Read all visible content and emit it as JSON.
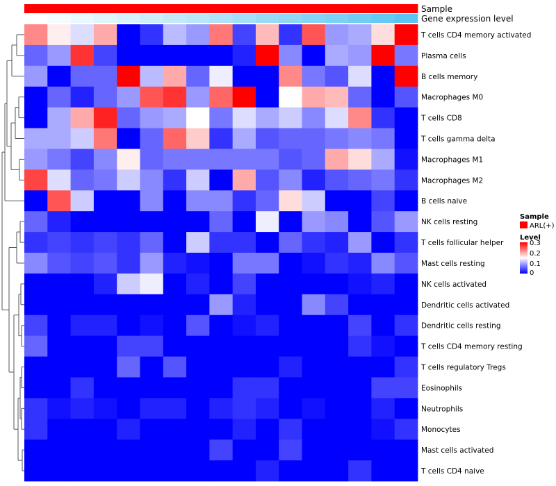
{
  "chart_data": {
    "type": "heatmap",
    "annotation_tracks": [
      "Sample",
      "Gene expression level"
    ],
    "rows": [
      "T cells CD4 memory activated",
      "Plasma cells",
      "B cells memory",
      "Macrophages M0",
      "T cells CD8",
      "T cells gamma delta",
      "Macrophages M1",
      "Macrophages M2",
      "B cells naive",
      "NK cells resting",
      "T cells follicular helper",
      "Mast cells resting",
      "NK cells activated",
      "Dendritic cells activated",
      "Dendritic cells resting",
      "T cells CD4 memory resting",
      "T cells regulatory  Tregs",
      "Eosinophils",
      "Neutrophils",
      "Monocytes",
      "Mast cells activated",
      "T cells CD4 naive"
    ],
    "values": [
      [
        0.22,
        0.16,
        0.13,
        0.2,
        0.0,
        0.03,
        0.11,
        0.09,
        0.23,
        0.04,
        0.19,
        0.03,
        0.25,
        0.09,
        0.1,
        0.17,
        0.3
      ],
      [
        0.06,
        0.09,
        0.27,
        0.04,
        0.0,
        0.0,
        0.0,
        0.0,
        0.0,
        0.02,
        0.3,
        0.08,
        0.0,
        0.1,
        0.09,
        0.3,
        0.07
      ],
      [
        0.09,
        0.0,
        0.06,
        0.06,
        0.3,
        0.11,
        0.2,
        0.06,
        0.14,
        0.0,
        0.0,
        0.22,
        0.07,
        0.05,
        0.13,
        0.0,
        0.3
      ],
      [
        0.0,
        0.06,
        0.02,
        0.06,
        0.09,
        0.25,
        0.27,
        0.09,
        0.24,
        0.3,
        0.0,
        0.15,
        0.2,
        0.19,
        0.06,
        0.0,
        0.05
      ],
      [
        0.0,
        0.1,
        0.2,
        0.28,
        0.06,
        0.09,
        0.1,
        0.15,
        0.07,
        0.13,
        0.1,
        0.12,
        0.08,
        0.13,
        0.22,
        0.03,
        0.0
      ],
      [
        0.1,
        0.1,
        0.12,
        0.23,
        0.0,
        0.06,
        0.24,
        0.18,
        0.03,
        0.1,
        0.05,
        0.06,
        0.06,
        0.07,
        0.08,
        0.07,
        0.0
      ],
      [
        0.09,
        0.07,
        0.04,
        0.08,
        0.16,
        0.06,
        0.07,
        0.07,
        0.07,
        0.07,
        0.07,
        0.05,
        0.06,
        0.2,
        0.17,
        0.1,
        0.01
      ],
      [
        0.26,
        0.13,
        0.06,
        0.07,
        0.12,
        0.08,
        0.03,
        0.12,
        0.0,
        0.2,
        0.05,
        0.08,
        0.02,
        0.05,
        0.06,
        0.07,
        0.03
      ],
      [
        0.0,
        0.25,
        0.12,
        0.0,
        0.0,
        0.08,
        0.0,
        0.08,
        0.08,
        0.03,
        0.06,
        0.17,
        0.12,
        0.0,
        0.0,
        0.04,
        0.0
      ],
      [
        0.06,
        0.02,
        0.0,
        0.0,
        0.0,
        0.0,
        0.0,
        0.0,
        0.06,
        0.0,
        0.14,
        0.0,
        0.09,
        0.08,
        0.0,
        0.05,
        0.09
      ],
      [
        0.03,
        0.04,
        0.03,
        0.04,
        0.03,
        0.06,
        0.0,
        0.12,
        0.03,
        0.03,
        0.0,
        0.06,
        0.03,
        0.02,
        0.09,
        0.0,
        0.03
      ],
      [
        0.08,
        0.05,
        0.04,
        0.05,
        0.03,
        0.09,
        0.02,
        0.01,
        0.0,
        0.07,
        0.07,
        0.0,
        0.01,
        0.03,
        0.02,
        0.08,
        0.05
      ],
      [
        0.0,
        0.0,
        0.0,
        0.02,
        0.12,
        0.14,
        0.0,
        0.02,
        0.0,
        0.04,
        0.0,
        0.0,
        0.0,
        0.0,
        0.01,
        0.02,
        0.0
      ],
      [
        0.0,
        0.0,
        0.0,
        0.0,
        0.0,
        0.0,
        0.0,
        0.0,
        0.09,
        0.02,
        0.0,
        0.0,
        0.08,
        0.04,
        0.0,
        0.0,
        0.0
      ],
      [
        0.04,
        0.0,
        0.02,
        0.02,
        0.0,
        0.01,
        0.0,
        0.05,
        0.0,
        0.01,
        0.02,
        0.0,
        0.0,
        0.0,
        0.04,
        0.0,
        0.03
      ],
      [
        0.06,
        0.0,
        0.0,
        0.0,
        0.04,
        0.04,
        0.0,
        0.0,
        0.0,
        0.0,
        0.0,
        0.0,
        0.0,
        0.0,
        0.03,
        0.01,
        0.0
      ],
      [
        0.0,
        0.0,
        0.0,
        0.0,
        0.06,
        0.0,
        0.05,
        0.0,
        0.0,
        0.0,
        0.0,
        0.02,
        0.0,
        0.0,
        0.0,
        0.0,
        0.03
      ],
      [
        0.0,
        0.0,
        0.03,
        0.0,
        0.0,
        0.0,
        0.0,
        0.0,
        0.0,
        0.03,
        0.03,
        0.0,
        0.0,
        0.0,
        0.0,
        0.04,
        0.04
      ],
      [
        0.03,
        0.01,
        0.02,
        0.01,
        0.0,
        0.02,
        0.02,
        0.0,
        0.02,
        0.03,
        0.02,
        0.0,
        0.01,
        0.0,
        0.0,
        0.02,
        0.0
      ],
      [
        0.03,
        0.0,
        0.0,
        0.0,
        0.02,
        0.0,
        0.0,
        0.0,
        0.0,
        0.02,
        0.0,
        0.03,
        0.0,
        0.0,
        0.0,
        0.01,
        0.03
      ],
      [
        0.0,
        0.0,
        0.0,
        0.0,
        0.0,
        0.0,
        0.0,
        0.0,
        0.04,
        0.0,
        0.0,
        0.04,
        0.0,
        0.0,
        0.0,
        0.0,
        0.0
      ],
      [
        0.0,
        0.0,
        0.0,
        0.0,
        0.0,
        0.0,
        0.0,
        0.0,
        0.0,
        0.0,
        0.02,
        0.0,
        0.0,
        0.0,
        0.03,
        0.0,
        0.0
      ]
    ],
    "sample_annotation": [
      "ARL(+)",
      "ARL(+)",
      "ARL(+)",
      "ARL(+)",
      "ARL(+)",
      "ARL(+)",
      "ARL(+)",
      "ARL(+)",
      "ARL(+)",
      "ARL(+)",
      "ARL(+)",
      "ARL(+)",
      "ARL(+)",
      "ARL(+)",
      "ARL(+)",
      "ARL(+)",
      "ARL(+)"
    ],
    "expression_annotation": [
      0.0,
      0.06,
      0.12,
      0.18,
      0.24,
      0.3,
      0.36,
      0.42,
      0.48,
      0.55,
      0.62,
      0.68,
      0.74,
      0.8,
      0.86,
      0.93,
      1.0
    ],
    "legend": {
      "sample_title": "Sample",
      "sample_entries": [
        "ARL(+)"
      ],
      "level_title": "Level",
      "level_ticks": [
        "0.3",
        "0.2",
        "0.1",
        "0"
      ],
      "level_tick_values": [
        0.3,
        0.2,
        0.1,
        0.0
      ],
      "position": "right"
    },
    "color_scale": {
      "low": "#0000ff",
      "mid": "#ffffff",
      "high": "#ff0000",
      "range": [
        0,
        0.3
      ]
    },
    "annotation_colors": {
      "sample": "#ff0000",
      "expression_low": "#ffffff",
      "expression_high": "#5bc5f2"
    },
    "row_dendrogram": "visible",
    "title": "",
    "xlabel": "",
    "ylabel": ""
  }
}
